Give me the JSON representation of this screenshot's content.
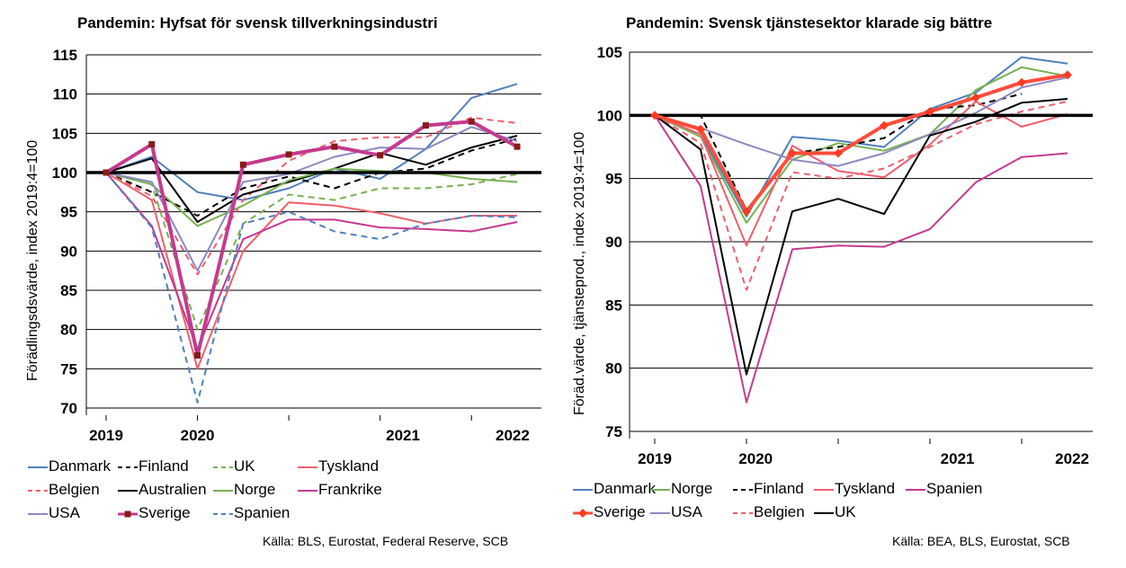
{
  "colors": {
    "Danmark": "#4f81bd",
    "Finland": "#000000",
    "UK": "#77b050",
    "Tyskland": "#ef5f6c",
    "Belgien": "#ef5f6c",
    "Australien": "#000000",
    "Norge": "#77b050",
    "Frankrike": "#c43a8e",
    "USA": "#8e88c2",
    "Sverige_left": "#c43a8e",
    "Sverige_right": "#ff4c3b",
    "Spanien_left": "#4f81bd",
    "Spanien_right": "#c43a8e",
    "UK_right": "#000000",
    "reference": "#000000"
  },
  "chart_data": [
    {
      "type": "line",
      "title": "Pandemin: Hyfsat för svensk tillverkningsindustri",
      "ylabel": "Förädlingsdsvärde, index 2019:4=100",
      "source": "Källa: BLS, Eurostat, Federal Reserve, SCB",
      "ylim": [
        70,
        115
      ],
      "yticks": [
        "70",
        "75",
        "80",
        "85",
        "90",
        "95",
        "100",
        "105",
        "110",
        "115"
      ],
      "x": [
        "2019Q4",
        "2020Q1",
        "2020Q2",
        "2020Q3",
        "2020Q4",
        "2021Q1",
        "2021Q2",
        "2021Q3",
        "2021Q4",
        "2022Q1"
      ],
      "xtick_labels": [
        {
          "index": 0,
          "label": "2019"
        },
        {
          "index": 2,
          "label": "2020"
        },
        {
          "index": 6.5,
          "label": "2021"
        },
        {
          "index": 8.9,
          "label": "2022"
        }
      ],
      "reference_line": 100,
      "grid": true,
      "legend_position": "bottom",
      "series": [
        {
          "name": "Danmark",
          "values": [
            100,
            102,
            97.5,
            96.5,
            98,
            100.5,
            99.2,
            103,
            109.5,
            111.3
          ]
        },
        {
          "name": "Finland",
          "values": [
            100,
            97.5,
            94.5,
            98,
            99.5,
            98,
            100,
            100.5,
            102.8,
            104.3
          ]
        },
        {
          "name": "UK",
          "values": [
            100,
            98.5,
            80,
            93.5,
            97.2,
            96.5,
            98,
            98,
            98.5,
            99.8
          ]
        },
        {
          "name": "Tyskland",
          "values": [
            100,
            96.5,
            75,
            90,
            96.2,
            95.8,
            94.8,
            93.5,
            94.5,
            94.5
          ]
        },
        {
          "name": "Belgien",
          "values": [
            100,
            97,
            87,
            96.5,
            101.5,
            104,
            104.5,
            104.5,
            107,
            106.3
          ]
        },
        {
          "name": "Australien",
          "values": [
            100,
            101.8,
            93.7,
            97.2,
            98.8,
            100.5,
            102.5,
            101,
            103.2,
            104.7
          ]
        },
        {
          "name": "Norge",
          "values": [
            100,
            98.5,
            93.2,
            95.8,
            99,
            100.5,
            100.2,
            100,
            99.2,
            98.8
          ]
        },
        {
          "name": "Frankrike",
          "values": [
            100,
            93.2,
            77.5,
            91.5,
            94,
            94,
            93,
            92.8,
            92.5,
            93.7
          ]
        },
        {
          "name": "USA",
          "values": [
            100,
            98.8,
            87.5,
            98.8,
            99.8,
            102,
            103.2,
            103,
            105.8,
            104
          ]
        },
        {
          "name": "Sverige",
          "values": [
            100,
            103.6,
            76.7,
            101,
            102.3,
            103.3,
            102.2,
            106,
            106.5,
            103.3
          ]
        },
        {
          "name": "Spanien",
          "values": [
            100,
            93,
            70.7,
            93.5,
            95,
            92.5,
            91.5,
            93.5,
            94.5,
            94.3
          ]
        }
      ],
      "legend_rows": [
        [
          "Danmark",
          "Finland",
          "UK",
          "Tyskland"
        ],
        [
          "Belgien",
          "Australien",
          "Norge",
          "Frankrike"
        ],
        [
          "USA",
          "Sverige",
          "Spanien"
        ]
      ]
    },
    {
      "type": "line",
      "title": "Pandemin: Svensk tjänstesektor klarade sig bättre",
      "ylabel": "Föräd.värde, tjänsteprod., index 2019:4=100",
      "source": "Källa: BEA, BLS, Eurostat, SCB",
      "ylim": [
        75,
        105
      ],
      "yticks": [
        "75",
        "80",
        "85",
        "90",
        "95",
        "100",
        "105"
      ],
      "x": [
        "2019Q4",
        "2020Q1",
        "2020Q2",
        "2020Q3",
        "2020Q4",
        "2021Q1",
        "2021Q2",
        "2021Q3",
        "2021Q4",
        "2022Q1"
      ],
      "xtick_labels": [
        {
          "index": 0,
          "label": "2019"
        },
        {
          "index": 2.2,
          "label": "2020"
        },
        {
          "index": 6.6,
          "label": "2021"
        },
        {
          "index": 9.1,
          "label": "2022"
        }
      ],
      "reference_line": 100,
      "grid": true,
      "legend_position": "bottom",
      "series": [
        {
          "name": "Danmark",
          "values": [
            100,
            98.5,
            92,
            98.3,
            98,
            97.5,
            100.5,
            101.8,
            104.6,
            104.1
          ]
        },
        {
          "name": "Norge",
          "values": [
            100,
            98.3,
            91.5,
            96.5,
            97.8,
            97.2,
            98.5,
            102,
            103.8,
            103.1
          ]
        },
        {
          "name": "Finland",
          "values": [
            100,
            100,
            92.5,
            97,
            97.5,
            98.2,
            100.5,
            100.8,
            101.7,
            null
          ]
        },
        {
          "name": "Tyskland",
          "values": [
            100,
            98.5,
            89.7,
            97.6,
            95.6,
            95.1,
            97.7,
            101.1,
            99.1,
            100.1
          ]
        },
        {
          "name": "Spanien",
          "values": [
            100,
            94.4,
            77.3,
            89.4,
            89.7,
            89.6,
            91,
            94.7,
            96.7,
            97
          ]
        },
        {
          "name": "Sverige",
          "values": [
            100,
            98.9,
            92.4,
            97,
            97,
            99.2,
            100.3,
            101.4,
            102.6,
            103.2
          ]
        },
        {
          "name": "USA",
          "values": [
            100,
            99,
            97.7,
            96.5,
            96,
            97,
            98.5,
            100.2,
            102.2,
            103
          ]
        },
        {
          "name": "Belgien",
          "values": [
            100,
            97.8,
            86.2,
            95.5,
            95,
            95.8,
            97.5,
            99.3,
            100.3,
            101.1
          ]
        },
        {
          "name": "UK",
          "values": [
            100,
            97.3,
            79.5,
            92.4,
            93.4,
            92.2,
            98.4,
            99.5,
            101,
            101.3
          ]
        }
      ],
      "legend_rows": [
        [
          "Danmark",
          "Norge",
          "Finland",
          "Tyskland",
          "Spanien"
        ],
        [
          "Sverige",
          "USA",
          "Belgien",
          "UK"
        ]
      ]
    }
  ]
}
